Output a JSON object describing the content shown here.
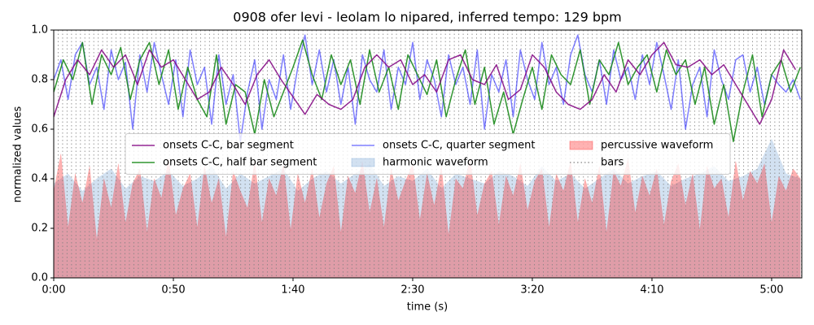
{
  "chart_data": {
    "type": "line",
    "title": "0908 ofer levi - leolam lo nipared, inferred tempo: 129 bpm",
    "x_label": "time (s)",
    "y_label": "normalized values",
    "xlim": [
      0,
      312.6
    ],
    "ylim": [
      0,
      1.0
    ],
    "xticks": [
      {
        "value": 0,
        "label": "0:00"
      },
      {
        "value": 50,
        "label": "0:50"
      },
      {
        "value": 100,
        "label": "1:40"
      },
      {
        "value": 150,
        "label": "2:30"
      },
      {
        "value": 200,
        "label": "3:20"
      },
      {
        "value": 250,
        "label": "4:10"
      },
      {
        "value": 300,
        "label": "5:00"
      }
    ],
    "yticks": [
      {
        "value": 0,
        "label": "0.0"
      },
      {
        "value": 0.2,
        "label": "0.2"
      },
      {
        "value": 0.4,
        "label": "0.4"
      },
      {
        "value": 0.6,
        "label": "0.6"
      },
      {
        "value": 0.8,
        "label": "0.8"
      },
      {
        "value": 1.0,
        "label": "1.0"
      }
    ],
    "legend_loc": "center",
    "legend_ncol": 3,
    "series": [
      {
        "name": "onsets C-C, bar segment",
        "type": "line",
        "color": "#800080",
        "opacity": 0.85,
        "x": [
          0,
          5,
          10,
          15,
          20,
          25,
          30,
          35,
          40,
          45,
          50,
          55,
          60,
          65,
          70,
          75,
          80,
          85,
          90,
          95,
          100,
          105,
          110,
          115,
          120,
          125,
          130,
          135,
          140,
          145,
          150,
          155,
          160,
          165,
          170,
          175,
          180,
          185,
          190,
          195,
          200,
          205,
          210,
          215,
          220,
          225,
          230,
          235,
          240,
          245,
          250,
          255,
          260,
          265,
          270,
          275,
          280,
          285,
          290,
          295,
          300,
          305,
          310
        ],
        "values": [
          0.65,
          0.8,
          0.88,
          0.82,
          0.92,
          0.85,
          0.9,
          0.78,
          0.92,
          0.85,
          0.88,
          0.8,
          0.72,
          0.75,
          0.85,
          0.78,
          0.7,
          0.82,
          0.88,
          0.8,
          0.73,
          0.66,
          0.74,
          0.7,
          0.68,
          0.72,
          0.85,
          0.9,
          0.85,
          0.88,
          0.78,
          0.82,
          0.75,
          0.88,
          0.9,
          0.8,
          0.78,
          0.86,
          0.72,
          0.76,
          0.9,
          0.85,
          0.75,
          0.7,
          0.68,
          0.72,
          0.82,
          0.75,
          0.88,
          0.82,
          0.9,
          0.95,
          0.86,
          0.85,
          0.88,
          0.82,
          0.86,
          0.78,
          0.7,
          0.62,
          0.72,
          0.92,
          0.84
        ]
      },
      {
        "name": "onsets C-C, half bar segment",
        "type": "line",
        "color": "#1a8a1a",
        "opacity": 0.9,
        "x": [
          0,
          4,
          8,
          12,
          16,
          20,
          24,
          28,
          32,
          36,
          40,
          44,
          48,
          52,
          56,
          60,
          64,
          68,
          72,
          76,
          80,
          84,
          88,
          92,
          96,
          100,
          104,
          108,
          112,
          116,
          120,
          124,
          128,
          132,
          136,
          140,
          144,
          148,
          152,
          156,
          160,
          164,
          168,
          172,
          176,
          180,
          184,
          188,
          192,
          196,
          200,
          204,
          208,
          212,
          216,
          220,
          224,
          228,
          232,
          236,
          240,
          244,
          248,
          252,
          256,
          260,
          264,
          268,
          272,
          276,
          280,
          284,
          288,
          292,
          296,
          300,
          304,
          308,
          312
        ],
        "values": [
          0.75,
          0.88,
          0.8,
          0.95,
          0.7,
          0.9,
          0.82,
          0.93,
          0.72,
          0.88,
          0.95,
          0.78,
          0.92,
          0.68,
          0.85,
          0.72,
          0.65,
          0.9,
          0.62,
          0.78,
          0.75,
          0.58,
          0.8,
          0.65,
          0.75,
          0.85,
          0.96,
          0.82,
          0.72,
          0.9,
          0.78,
          0.88,
          0.7,
          0.92,
          0.75,
          0.85,
          0.68,
          0.9,
          0.82,
          0.74,
          0.88,
          0.65,
          0.8,
          0.92,
          0.7,
          0.85,
          0.62,
          0.75,
          0.58,
          0.72,
          0.85,
          0.68,
          0.9,
          0.82,
          0.78,
          0.92,
          0.7,
          0.88,
          0.82,
          0.95,
          0.78,
          0.85,
          0.9,
          0.75,
          0.92,
          0.82,
          0.88,
          0.7,
          0.85,
          0.62,
          0.78,
          0.55,
          0.75,
          0.9,
          0.65,
          0.82,
          0.88,
          0.75,
          0.85
        ]
      },
      {
        "name": "onsets C-C, quarter segment",
        "type": "line",
        "color": "#0000ff",
        "opacity": 0.5,
        "x": [
          0,
          3,
          6,
          9,
          12,
          15,
          18,
          21,
          24,
          27,
          30,
          33,
          36,
          39,
          42,
          45,
          48,
          51,
          54,
          57,
          60,
          63,
          66,
          69,
          72,
          75,
          78,
          81,
          84,
          87,
          90,
          93,
          96,
          99,
          102,
          105,
          108,
          111,
          114,
          117,
          120,
          123,
          126,
          129,
          132,
          135,
          138,
          141,
          144,
          147,
          150,
          153,
          156,
          159,
          162,
          165,
          168,
          171,
          174,
          177,
          180,
          183,
          186,
          189,
          192,
          195,
          198,
          201,
          204,
          207,
          210,
          213,
          216,
          219,
          222,
          225,
          228,
          231,
          234,
          237,
          240,
          243,
          246,
          249,
          252,
          255,
          258,
          261,
          264,
          267,
          270,
          273,
          276,
          279,
          282,
          285,
          288,
          291,
          294,
          297,
          300,
          303,
          306,
          309,
          312
        ],
        "values": [
          0.8,
          0.88,
          0.72,
          0.9,
          0.95,
          0.78,
          0.85,
          0.68,
          0.92,
          0.8,
          0.87,
          0.6,
          0.9,
          0.75,
          0.95,
          0.82,
          0.7,
          0.88,
          0.65,
          0.92,
          0.78,
          0.85,
          0.62,
          0.9,
          0.7,
          0.82,
          0.55,
          0.75,
          0.88,
          0.6,
          0.8,
          0.72,
          0.9,
          0.68,
          0.85,
          0.98,
          0.78,
          0.92,
          0.75,
          0.88,
          0.7,
          0.85,
          0.62,
          0.9,
          0.8,
          0.75,
          0.92,
          0.68,
          0.85,
          0.78,
          0.95,
          0.72,
          0.88,
          0.8,
          0.65,
          0.9,
          0.78,
          0.85,
          0.7,
          0.92,
          0.6,
          0.82,
          0.75,
          0.88,
          0.65,
          0.92,
          0.8,
          0.72,
          0.95,
          0.78,
          0.85,
          0.7,
          0.9,
          0.98,
          0.82,
          0.75,
          0.88,
          0.7,
          0.92,
          0.8,
          0.85,
          0.72,
          0.9,
          0.78,
          0.95,
          0.82,
          0.68,
          0.88,
          0.6,
          0.78,
          0.85,
          0.65,
          0.92,
          0.8,
          0.72,
          0.88,
          0.9,
          0.75,
          0.85,
          0.7,
          0.82,
          0.78,
          0.75,
          0.8,
          0.72
        ]
      },
      {
        "name": "harmonic waveform",
        "type": "area",
        "color": "#6a9ccf",
        "opacity": 0.3,
        "x": [
          0,
          6,
          12,
          18,
          24,
          30,
          36,
          42,
          48,
          54,
          60,
          66,
          72,
          78,
          84,
          90,
          96,
          102,
          108,
          114,
          120,
          126,
          132,
          138,
          144,
          150,
          156,
          162,
          168,
          174,
          180,
          186,
          192,
          198,
          204,
          210,
          216,
          222,
          228,
          234,
          240,
          246,
          252,
          258,
          264,
          270,
          276,
          282,
          288,
          294,
          300,
          306,
          312
        ],
        "values": [
          0.38,
          0.42,
          0.35,
          0.4,
          0.44,
          0.36,
          0.41,
          0.39,
          0.43,
          0.37,
          0.4,
          0.45,
          0.36,
          0.42,
          0.38,
          0.41,
          0.44,
          0.35,
          0.4,
          0.43,
          0.38,
          0.42,
          0.46,
          0.37,
          0.41,
          0.39,
          0.44,
          0.36,
          0.42,
          0.4,
          0.38,
          0.43,
          0.41,
          0.37,
          0.45,
          0.39,
          0.42,
          0.36,
          0.4,
          0.44,
          0.38,
          0.41,
          0.43,
          0.37,
          0.4,
          0.42,
          0.45,
          0.39,
          0.41,
          0.44,
          0.56,
          0.42,
          0.4
        ]
      },
      {
        "name": "percussive waveform",
        "type": "area",
        "color": "#ff0000",
        "opacity": 0.3,
        "x": [
          0,
          3,
          6,
          9,
          12,
          15,
          18,
          21,
          24,
          27,
          30,
          33,
          36,
          39,
          42,
          45,
          48,
          51,
          54,
          57,
          60,
          63,
          66,
          69,
          72,
          75,
          78,
          81,
          84,
          87,
          90,
          93,
          96,
          99,
          102,
          105,
          108,
          111,
          114,
          117,
          120,
          123,
          126,
          129,
          132,
          135,
          138,
          141,
          144,
          147,
          150,
          153,
          156,
          159,
          162,
          165,
          168,
          171,
          174,
          177,
          180,
          183,
          186,
          189,
          192,
          195,
          198,
          201,
          204,
          207,
          210,
          213,
          216,
          219,
          222,
          225,
          228,
          231,
          234,
          237,
          240,
          243,
          246,
          249,
          252,
          255,
          258,
          261,
          264,
          267,
          270,
          273,
          276,
          279,
          282,
          285,
          288,
          291,
          294,
          297,
          300,
          303,
          306,
          309,
          312
        ],
        "values": [
          0.35,
          0.5,
          0.2,
          0.42,
          0.3,
          0.45,
          0.15,
          0.4,
          0.28,
          0.46,
          0.22,
          0.38,
          0.44,
          0.18,
          0.4,
          0.32,
          0.48,
          0.25,
          0.36,
          0.42,
          0.2,
          0.45,
          0.3,
          0.4,
          0.16,
          0.43,
          0.35,
          0.28,
          0.47,
          0.22,
          0.4,
          0.33,
          0.46,
          0.19,
          0.42,
          0.3,
          0.44,
          0.24,
          0.38,
          0.45,
          0.18,
          0.41,
          0.34,
          0.47,
          0.26,
          0.4,
          0.2,
          0.44,
          0.31,
          0.39,
          0.46,
          0.23,
          0.42,
          0.29,
          0.45,
          0.17,
          0.4,
          0.36,
          0.48,
          0.25,
          0.38,
          0.43,
          0.21,
          0.41,
          0.33,
          0.46,
          0.27,
          0.39,
          0.44,
          0.2,
          0.42,
          0.35,
          0.47,
          0.22,
          0.4,
          0.3,
          0.45,
          0.18,
          0.43,
          0.37,
          0.48,
          0.26,
          0.41,
          0.33,
          0.44,
          0.21,
          0.39,
          0.46,
          0.29,
          0.42,
          0.19,
          0.45,
          0.36,
          0.4,
          0.24,
          0.47,
          0.31,
          0.43,
          0.38,
          0.46,
          0.22,
          0.41,
          0.35,
          0.44,
          0.4
        ]
      },
      {
        "name": "bars",
        "type": "vlines",
        "color": "#808080",
        "opacity": 0.8,
        "x": [
          0,
          1.86,
          3.72,
          5.58,
          7.44,
          9.3,
          11.16,
          13.02,
          14.88,
          16.74,
          18.6,
          20.46,
          22.32,
          24.18,
          26.04,
          27.9,
          29.76,
          31.62,
          33.48,
          35.34,
          37.2,
          39.06,
          40.92,
          42.78,
          44.64,
          46.5,
          48.36,
          50.22,
          52.08,
          53.94,
          55.8,
          57.66,
          59.52,
          61.38,
          63.24,
          65.1,
          66.96,
          68.82,
          70.68,
          72.54,
          74.4,
          76.26,
          78.12,
          79.98,
          81.84,
          83.7,
          85.56,
          87.42,
          89.28,
          91.14,
          93,
          94.86,
          96.72,
          98.58,
          100.44,
          102.3,
          104.16,
          106.02,
          107.88,
          109.74,
          111.6,
          113.46,
          115.32,
          117.18,
          119.04,
          120.9,
          122.76,
          124.62,
          126.48,
          128.34,
          130.2,
          132.06,
          133.92,
          135.78,
          137.64,
          139.5,
          141.36,
          143.22,
          145.08,
          146.94,
          148.8,
          150.66,
          152.52,
          154.38,
          156.24,
          158.1,
          159.96,
          161.82,
          163.68,
          165.54,
          167.4,
          169.26,
          171.12,
          172.98,
          174.84,
          176.7,
          178.56,
          180.42,
          182.28,
          184.14,
          186,
          187.86,
          189.72,
          191.58,
          193.44,
          195.3,
          197.16,
          199.02,
          200.88,
          202.74,
          204.6,
          206.46,
          208.32,
          210.18,
          212.04,
          213.9,
          215.76,
          217.62,
          219.48,
          221.34,
          223.2,
          225.06,
          226.92,
          228.78,
          230.64,
          232.5,
          234.36,
          236.22,
          238.08,
          239.94,
          241.8,
          243.66,
          245.52,
          247.38,
          249.24,
          251.1,
          252.96,
          254.82,
          256.68,
          258.54,
          260.4,
          262.26,
          264.12,
          265.98,
          267.84,
          269.7,
          271.56,
          273.42,
          275.28,
          277.14,
          279,
          280.86,
          282.72,
          284.58,
          286.44,
          288.3,
          290.16,
          292.02,
          293.88,
          295.74,
          297.6,
          299.46,
          301.32,
          303.18,
          305.04,
          306.9,
          308.76,
          310.62,
          312.48
        ]
      }
    ]
  }
}
